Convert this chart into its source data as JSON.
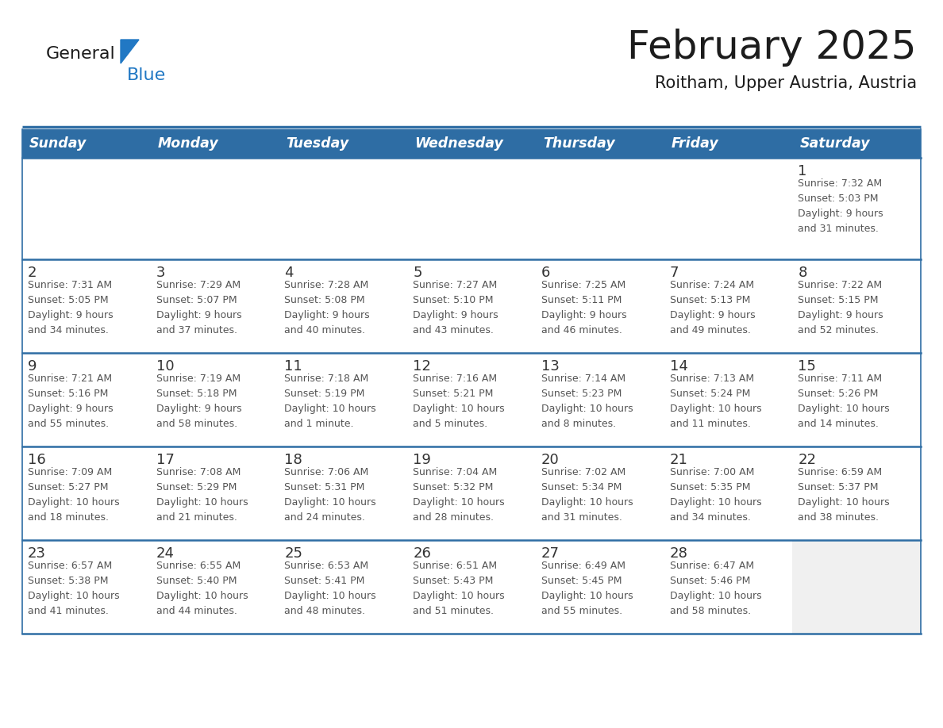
{
  "title": "February 2025",
  "subtitle": "Roitham, Upper Austria, Austria",
  "days_of_week": [
    "Sunday",
    "Monday",
    "Tuesday",
    "Wednesday",
    "Thursday",
    "Friday",
    "Saturday"
  ],
  "header_bg": "#2E6DA4",
  "header_text": "#FFFFFF",
  "row_bg": "#FFFFFF",
  "last_row_empty_bg": "#F2F2F2",
  "cell_border": "#2E6DA4",
  "day_num_color": "#333333",
  "info_color": "#555555",
  "logo_general_color": "#1a1a1a",
  "logo_blue_color": "#2178C4",
  "fig_width": 11.88,
  "fig_height": 9.18,
  "calendar": [
    [
      {
        "day": null,
        "info": null
      },
      {
        "day": null,
        "info": null
      },
      {
        "day": null,
        "info": null
      },
      {
        "day": null,
        "info": null
      },
      {
        "day": null,
        "info": null
      },
      {
        "day": null,
        "info": null
      },
      {
        "day": 1,
        "info": "Sunrise: 7:32 AM\nSunset: 5:03 PM\nDaylight: 9 hours\nand 31 minutes."
      }
    ],
    [
      {
        "day": 2,
        "info": "Sunrise: 7:31 AM\nSunset: 5:05 PM\nDaylight: 9 hours\nand 34 minutes."
      },
      {
        "day": 3,
        "info": "Sunrise: 7:29 AM\nSunset: 5:07 PM\nDaylight: 9 hours\nand 37 minutes."
      },
      {
        "day": 4,
        "info": "Sunrise: 7:28 AM\nSunset: 5:08 PM\nDaylight: 9 hours\nand 40 minutes."
      },
      {
        "day": 5,
        "info": "Sunrise: 7:27 AM\nSunset: 5:10 PM\nDaylight: 9 hours\nand 43 minutes."
      },
      {
        "day": 6,
        "info": "Sunrise: 7:25 AM\nSunset: 5:11 PM\nDaylight: 9 hours\nand 46 minutes."
      },
      {
        "day": 7,
        "info": "Sunrise: 7:24 AM\nSunset: 5:13 PM\nDaylight: 9 hours\nand 49 minutes."
      },
      {
        "day": 8,
        "info": "Sunrise: 7:22 AM\nSunset: 5:15 PM\nDaylight: 9 hours\nand 52 minutes."
      }
    ],
    [
      {
        "day": 9,
        "info": "Sunrise: 7:21 AM\nSunset: 5:16 PM\nDaylight: 9 hours\nand 55 minutes."
      },
      {
        "day": 10,
        "info": "Sunrise: 7:19 AM\nSunset: 5:18 PM\nDaylight: 9 hours\nand 58 minutes."
      },
      {
        "day": 11,
        "info": "Sunrise: 7:18 AM\nSunset: 5:19 PM\nDaylight: 10 hours\nand 1 minute."
      },
      {
        "day": 12,
        "info": "Sunrise: 7:16 AM\nSunset: 5:21 PM\nDaylight: 10 hours\nand 5 minutes."
      },
      {
        "day": 13,
        "info": "Sunrise: 7:14 AM\nSunset: 5:23 PM\nDaylight: 10 hours\nand 8 minutes."
      },
      {
        "day": 14,
        "info": "Sunrise: 7:13 AM\nSunset: 5:24 PM\nDaylight: 10 hours\nand 11 minutes."
      },
      {
        "day": 15,
        "info": "Sunrise: 7:11 AM\nSunset: 5:26 PM\nDaylight: 10 hours\nand 14 minutes."
      }
    ],
    [
      {
        "day": 16,
        "info": "Sunrise: 7:09 AM\nSunset: 5:27 PM\nDaylight: 10 hours\nand 18 minutes."
      },
      {
        "day": 17,
        "info": "Sunrise: 7:08 AM\nSunset: 5:29 PM\nDaylight: 10 hours\nand 21 minutes."
      },
      {
        "day": 18,
        "info": "Sunrise: 7:06 AM\nSunset: 5:31 PM\nDaylight: 10 hours\nand 24 minutes."
      },
      {
        "day": 19,
        "info": "Sunrise: 7:04 AM\nSunset: 5:32 PM\nDaylight: 10 hours\nand 28 minutes."
      },
      {
        "day": 20,
        "info": "Sunrise: 7:02 AM\nSunset: 5:34 PM\nDaylight: 10 hours\nand 31 minutes."
      },
      {
        "day": 21,
        "info": "Sunrise: 7:00 AM\nSunset: 5:35 PM\nDaylight: 10 hours\nand 34 minutes."
      },
      {
        "day": 22,
        "info": "Sunrise: 6:59 AM\nSunset: 5:37 PM\nDaylight: 10 hours\nand 38 minutes."
      }
    ],
    [
      {
        "day": 23,
        "info": "Sunrise: 6:57 AM\nSunset: 5:38 PM\nDaylight: 10 hours\nand 41 minutes."
      },
      {
        "day": 24,
        "info": "Sunrise: 6:55 AM\nSunset: 5:40 PM\nDaylight: 10 hours\nand 44 minutes."
      },
      {
        "day": 25,
        "info": "Sunrise: 6:53 AM\nSunset: 5:41 PM\nDaylight: 10 hours\nand 48 minutes."
      },
      {
        "day": 26,
        "info": "Sunrise: 6:51 AM\nSunset: 5:43 PM\nDaylight: 10 hours\nand 51 minutes."
      },
      {
        "day": 27,
        "info": "Sunrise: 6:49 AM\nSunset: 5:45 PM\nDaylight: 10 hours\nand 55 minutes."
      },
      {
        "day": 28,
        "info": "Sunrise: 6:47 AM\nSunset: 5:46 PM\nDaylight: 10 hours\nand 58 minutes."
      },
      {
        "day": null,
        "info": null
      }
    ]
  ]
}
